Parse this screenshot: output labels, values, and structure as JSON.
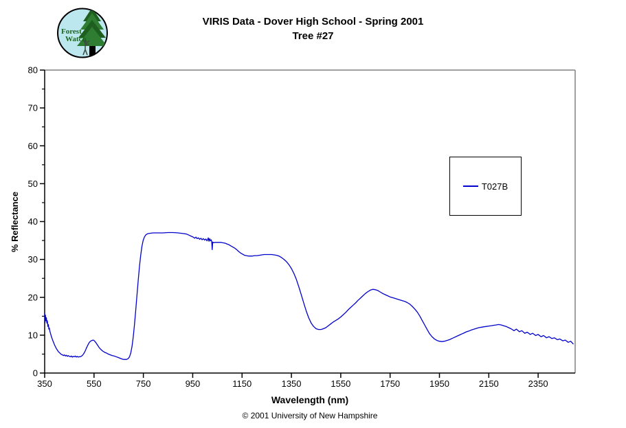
{
  "header": {
    "title_line1": "VIRIS Data - Dover High School - Spring 2001",
    "title_line2": "Tree #27",
    "logo": {
      "text_line1": "Forest",
      "text_line2": "Watch"
    }
  },
  "footer": {
    "copyright": "© 2001 University of New Hampshire"
  },
  "colors": {
    "series_blue": "#0000CC",
    "plot_border_gray": "#808080",
    "axis_black": "#000000",
    "logo_fill": "#BDE7EF",
    "logo_tree_green": "#2E7D32",
    "logo_tree_dark": "#1E5E1E",
    "logo_text_green": "#1A661A"
  },
  "chart_data": {
    "type": "line",
    "title": "VIRIS Data - Dover High School - Spring 2001 — Tree #27",
    "xlabel": "Wavelength (nm)",
    "ylabel": "% Reflectance",
    "xlim": [
      350,
      2500
    ],
    "ylim": [
      0,
      80
    ],
    "x_ticks": [
      350,
      550,
      750,
      950,
      1150,
      1350,
      1550,
      1750,
      1950,
      2150,
      2350
    ],
    "y_ticks": [
      0,
      10,
      20,
      30,
      40,
      50,
      60,
      70,
      80
    ],
    "y_minor_step": 5,
    "grid": false,
    "legend": {
      "position": "right-middle",
      "entries": [
        {
          "label": "T027B",
          "color": "#0000CC"
        }
      ]
    },
    "series": [
      {
        "name": "T027B",
        "color": "#0000CC",
        "points": [
          [
            350,
            15.8
          ],
          [
            351,
            13.2
          ],
          [
            353,
            15.3
          ],
          [
            355,
            13.8
          ],
          [
            357,
            14.6
          ],
          [
            359,
            13.2
          ],
          [
            361,
            13.8
          ],
          [
            363,
            12.3
          ],
          [
            365,
            12.8
          ],
          [
            367,
            11.6
          ],
          [
            369,
            11.9
          ],
          [
            371,
            11.1
          ],
          [
            374,
            10.4
          ],
          [
            377,
            9.7
          ],
          [
            380,
            9.1
          ],
          [
            383,
            8.6
          ],
          [
            386,
            8.1
          ],
          [
            390,
            7.4
          ],
          [
            394,
            6.9
          ],
          [
            398,
            6.4
          ],
          [
            402,
            6.0
          ],
          [
            406,
            5.6
          ],
          [
            410,
            5.4
          ],
          [
            414,
            5.1
          ],
          [
            418,
            4.9
          ],
          [
            422,
            4.8
          ],
          [
            426,
            4.6
          ],
          [
            430,
            4.8
          ],
          [
            434,
            4.5
          ],
          [
            438,
            4.7
          ],
          [
            442,
            4.4
          ],
          [
            446,
            4.6
          ],
          [
            450,
            4.4
          ],
          [
            454,
            4.3
          ],
          [
            458,
            4.5
          ],
          [
            462,
            4.2
          ],
          [
            466,
            4.4
          ],
          [
            470,
            4.3
          ],
          [
            474,
            4.5
          ],
          [
            478,
            4.2
          ],
          [
            482,
            4.4
          ],
          [
            486,
            4.2
          ],
          [
            490,
            4.3
          ],
          [
            494,
            4.3
          ],
          [
            498,
            4.4
          ],
          [
            502,
            4.6
          ],
          [
            506,
            4.9
          ],
          [
            510,
            5.3
          ],
          [
            514,
            5.8
          ],
          [
            518,
            6.4
          ],
          [
            522,
            7.0
          ],
          [
            526,
            7.5
          ],
          [
            530,
            8.0
          ],
          [
            534,
            8.3
          ],
          [
            538,
            8.5
          ],
          [
            542,
            8.6
          ],
          [
            546,
            8.7
          ],
          [
            550,
            8.6
          ],
          [
            554,
            8.3
          ],
          [
            558,
            8.0
          ],
          [
            562,
            7.6
          ],
          [
            566,
            7.2
          ],
          [
            570,
            6.8
          ],
          [
            575,
            6.4
          ],
          [
            580,
            6.1
          ],
          [
            585,
            5.8
          ],
          [
            590,
            5.6
          ],
          [
            595,
            5.4
          ],
          [
            600,
            5.3
          ],
          [
            608,
            5.0
          ],
          [
            616,
            4.8
          ],
          [
            624,
            4.6
          ],
          [
            632,
            4.5
          ],
          [
            640,
            4.3
          ],
          [
            648,
            4.1
          ],
          [
            656,
            3.9
          ],
          [
            664,
            3.7
          ],
          [
            670,
            3.6
          ],
          [
            676,
            3.6
          ],
          [
            682,
            3.6
          ],
          [
            688,
            3.8
          ],
          [
            694,
            4.3
          ],
          [
            699,
            5.3
          ],
          [
            704,
            7.0
          ],
          [
            709,
            9.5
          ],
          [
            714,
            12.8
          ],
          [
            719,
            16.5
          ],
          [
            724,
            20.5
          ],
          [
            729,
            24.4
          ],
          [
            734,
            28.0
          ],
          [
            739,
            31.0
          ],
          [
            744,
            33.4
          ],
          [
            749,
            35.0
          ],
          [
            754,
            35.9
          ],
          [
            760,
            36.5
          ],
          [
            768,
            36.8
          ],
          [
            776,
            36.9
          ],
          [
            790,
            37.0
          ],
          [
            810,
            37.0
          ],
          [
            830,
            37.0
          ],
          [
            850,
            37.1
          ],
          [
            870,
            37.1
          ],
          [
            890,
            37.0
          ],
          [
            905,
            36.9
          ],
          [
            915,
            36.8
          ],
          [
            925,
            36.7
          ],
          [
            935,
            36.4
          ],
          [
            945,
            36.1
          ],
          [
            952,
            35.9
          ],
          [
            958,
            35.6
          ],
          [
            963,
            35.9
          ],
          [
            968,
            35.5
          ],
          [
            973,
            35.7
          ],
          [
            978,
            35.3
          ],
          [
            983,
            35.6
          ],
          [
            988,
            35.2
          ],
          [
            993,
            35.5
          ],
          [
            998,
            35.1
          ],
          [
            1003,
            35.4
          ],
          [
            1008,
            34.9
          ],
          [
            1013,
            35.7
          ],
          [
            1016,
            34.8
          ],
          [
            1019,
            35.5
          ],
          [
            1022,
            34.9
          ],
          [
            1025,
            35.2
          ],
          [
            1027,
            34.7
          ],
          [
            1029,
            32.6
          ],
          [
            1031,
            34.6
          ],
          [
            1035,
            34.4
          ],
          [
            1040,
            34.5
          ],
          [
            1048,
            34.5
          ],
          [
            1056,
            34.5
          ],
          [
            1064,
            34.5
          ],
          [
            1072,
            34.4
          ],
          [
            1080,
            34.3
          ],
          [
            1088,
            34.1
          ],
          [
            1096,
            33.9
          ],
          [
            1104,
            33.6
          ],
          [
            1112,
            33.3
          ],
          [
            1120,
            33.0
          ],
          [
            1128,
            32.6
          ],
          [
            1136,
            32.1
          ],
          [
            1144,
            31.7
          ],
          [
            1152,
            31.4
          ],
          [
            1160,
            31.1
          ],
          [
            1168,
            31.0
          ],
          [
            1176,
            30.9
          ],
          [
            1184,
            30.9
          ],
          [
            1192,
            30.9
          ],
          [
            1200,
            31.0
          ],
          [
            1210,
            31.0
          ],
          [
            1220,
            31.1
          ],
          [
            1230,
            31.2
          ],
          [
            1240,
            31.3
          ],
          [
            1250,
            31.3
          ],
          [
            1260,
            31.3
          ],
          [
            1270,
            31.3
          ],
          [
            1280,
            31.2
          ],
          [
            1290,
            31.1
          ],
          [
            1300,
            30.9
          ],
          [
            1310,
            30.5
          ],
          [
            1320,
            30.0
          ],
          [
            1330,
            29.4
          ],
          [
            1340,
            28.6
          ],
          [
            1350,
            27.6
          ],
          [
            1360,
            26.3
          ],
          [
            1370,
            24.7
          ],
          [
            1380,
            22.8
          ],
          [
            1390,
            20.7
          ],
          [
            1400,
            18.5
          ],
          [
            1410,
            16.4
          ],
          [
            1420,
            14.6
          ],
          [
            1430,
            13.2
          ],
          [
            1440,
            12.3
          ],
          [
            1450,
            11.7
          ],
          [
            1460,
            11.5
          ],
          [
            1470,
            11.5
          ],
          [
            1480,
            11.7
          ],
          [
            1490,
            12.0
          ],
          [
            1500,
            12.5
          ],
          [
            1510,
            13.0
          ],
          [
            1520,
            13.5
          ],
          [
            1530,
            13.9
          ],
          [
            1540,
            14.3
          ],
          [
            1550,
            14.8
          ],
          [
            1560,
            15.4
          ],
          [
            1570,
            16.0
          ],
          [
            1580,
            16.7
          ],
          [
            1590,
            17.3
          ],
          [
            1600,
            17.9
          ],
          [
            1610,
            18.5
          ],
          [
            1620,
            19.2
          ],
          [
            1630,
            19.8
          ],
          [
            1640,
            20.4
          ],
          [
            1650,
            21.0
          ],
          [
            1660,
            21.5
          ],
          [
            1670,
            21.9
          ],
          [
            1680,
            22.1
          ],
          [
            1690,
            22.0
          ],
          [
            1700,
            21.8
          ],
          [
            1710,
            21.4
          ],
          [
            1720,
            21.0
          ],
          [
            1730,
            20.7
          ],
          [
            1740,
            20.4
          ],
          [
            1750,
            20.1
          ],
          [
            1760,
            19.9
          ],
          [
            1770,
            19.7
          ],
          [
            1780,
            19.5
          ],
          [
            1790,
            19.3
          ],
          [
            1800,
            19.1
          ],
          [
            1810,
            18.9
          ],
          [
            1820,
            18.6
          ],
          [
            1830,
            18.2
          ],
          [
            1840,
            17.6
          ],
          [
            1850,
            16.9
          ],
          [
            1860,
            16.1
          ],
          [
            1870,
            15.1
          ],
          [
            1880,
            13.9
          ],
          [
            1890,
            12.7
          ],
          [
            1900,
            11.5
          ],
          [
            1910,
            10.4
          ],
          [
            1920,
            9.6
          ],
          [
            1930,
            9.0
          ],
          [
            1940,
            8.6
          ],
          [
            1950,
            8.4
          ],
          [
            1960,
            8.3
          ],
          [
            1970,
            8.4
          ],
          [
            1980,
            8.6
          ],
          [
            1990,
            8.8
          ],
          [
            2000,
            9.1
          ],
          [
            2010,
            9.4
          ],
          [
            2020,
            9.7
          ],
          [
            2030,
            10.0
          ],
          [
            2040,
            10.3
          ],
          [
            2050,
            10.6
          ],
          [
            2060,
            10.9
          ],
          [
            2070,
            11.1
          ],
          [
            2080,
            11.4
          ],
          [
            2090,
            11.6
          ],
          [
            2100,
            11.8
          ],
          [
            2110,
            12.0
          ],
          [
            2120,
            12.1
          ],
          [
            2130,
            12.2
          ],
          [
            2140,
            12.3
          ],
          [
            2150,
            12.4
          ],
          [
            2160,
            12.5
          ],
          [
            2170,
            12.6
          ],
          [
            2180,
            12.7
          ],
          [
            2190,
            12.8
          ],
          [
            2200,
            12.7
          ],
          [
            2210,
            12.5
          ],
          [
            2220,
            12.3
          ],
          [
            2230,
            12.0
          ],
          [
            2240,
            11.7
          ],
          [
            2252,
            11.2
          ],
          [
            2262,
            11.6
          ],
          [
            2274,
            10.9
          ],
          [
            2284,
            11.2
          ],
          [
            2296,
            10.5
          ],
          [
            2306,
            10.8
          ],
          [
            2318,
            10.2
          ],
          [
            2328,
            10.5
          ],
          [
            2340,
            9.9
          ],
          [
            2350,
            10.2
          ],
          [
            2362,
            9.6
          ],
          [
            2372,
            9.9
          ],
          [
            2384,
            9.3
          ],
          [
            2394,
            9.6
          ],
          [
            2406,
            9.1
          ],
          [
            2416,
            9.3
          ],
          [
            2428,
            8.8
          ],
          [
            2438,
            9.0
          ],
          [
            2450,
            8.5
          ],
          [
            2460,
            8.7
          ],
          [
            2472,
            8.1
          ],
          [
            2482,
            8.4
          ],
          [
            2492,
            7.7
          ]
        ]
      }
    ]
  }
}
